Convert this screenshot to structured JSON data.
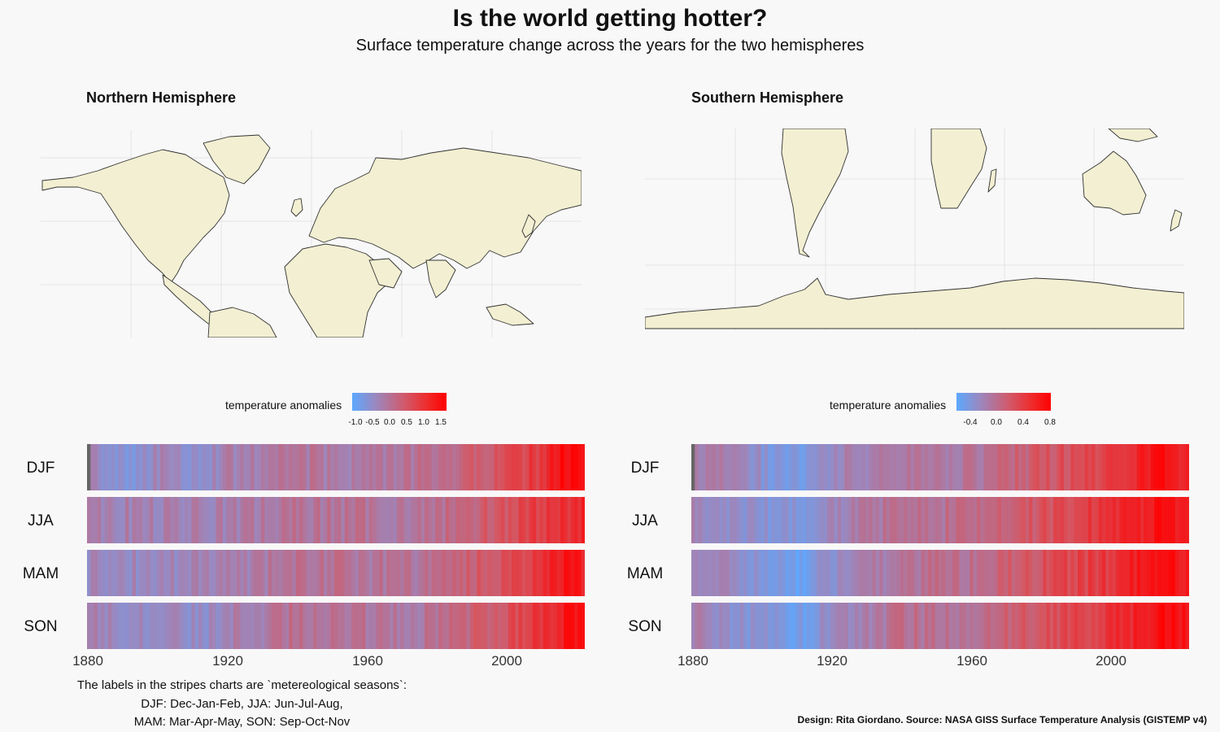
{
  "title": "Is the world getting hotter?",
  "subtitle": "Surface temperature change across the years for the two hemispheres",
  "panels": {
    "north": {
      "title": "Northern Hemisphere",
      "legend": {
        "label": "temperature anomalies",
        "ticks": [
          "-1.0",
          "-0.5",
          "0.0",
          "0.5",
          "1.0",
          "1.5"
        ]
      }
    },
    "south": {
      "title": "Southern Hemisphere",
      "legend": {
        "label": "temperature anomalies",
        "ticks": [
          "-0.4",
          "0.0",
          "0.4",
          "0.8"
        ]
      }
    }
  },
  "note": {
    "line1": "The labels in the stripes charts are `metereological seasons`:",
    "line2": "DJF: Dec-Jan-Feb, JJA: Jun-Jul-Aug,",
    "line3": "MAM: Mar-Apr-May, SON: Sep-Oct-Nov"
  },
  "caption": "Design: Rita Giordano.  Source: NASA GISS Surface Temperature Analysis (GISTEMP v4)",
  "colors": {
    "cold": "#5ca8ff",
    "mid": "#9b88bf",
    "warm": "#ff0000",
    "missing": "#666666",
    "land": "#f2efd2"
  },
  "chart_data": [
    {
      "type": "heatmap",
      "title": "Northern Hemisphere",
      "rows": [
        "DJF",
        "JJA",
        "MAM",
        "SON"
      ],
      "x_range": [
        1880,
        2022
      ],
      "x_ticks": [
        1880,
        1920,
        1960,
        2000
      ],
      "color_range": [
        -1.1,
        1.6
      ],
      "missing": {
        "DJF": [
          1880
        ]
      },
      "anchors": {
        "DJF": [
          [
            1880,
            -0.35
          ],
          [
            1893,
            -0.6
          ],
          [
            1900,
            -0.3
          ],
          [
            1910,
            -0.45
          ],
          [
            1920,
            -0.2
          ],
          [
            1940,
            0.0
          ],
          [
            1950,
            -0.15
          ],
          [
            1970,
            -0.05
          ],
          [
            1985,
            0.2
          ],
          [
            2000,
            0.6
          ],
          [
            2010,
            0.9
          ],
          [
            2016,
            1.45
          ],
          [
            2022,
            1.3
          ]
        ],
        "JJA": [
          [
            1880,
            -0.15
          ],
          [
            1900,
            -0.25
          ],
          [
            1920,
            -0.2
          ],
          [
            1940,
            0.0
          ],
          [
            1960,
            0.0
          ],
          [
            1975,
            -0.05
          ],
          [
            1990,
            0.3
          ],
          [
            2000,
            0.55
          ],
          [
            2010,
            0.85
          ],
          [
            2022,
            1.1
          ]
        ],
        "MAM": [
          [
            1880,
            -0.3
          ],
          [
            1900,
            -0.35
          ],
          [
            1920,
            -0.2
          ],
          [
            1940,
            0.05
          ],
          [
            1960,
            0.0
          ],
          [
            1975,
            0.0
          ],
          [
            1990,
            0.35
          ],
          [
            2000,
            0.6
          ],
          [
            2010,
            0.95
          ],
          [
            2016,
            1.3
          ],
          [
            2022,
            1.2
          ]
        ],
        "SON": [
          [
            1880,
            -0.25
          ],
          [
            1912,
            -0.45
          ],
          [
            1920,
            -0.25
          ],
          [
            1940,
            0.1
          ],
          [
            1960,
            0.0
          ],
          [
            1975,
            -0.05
          ],
          [
            1990,
            0.3
          ],
          [
            2000,
            0.6
          ],
          [
            2010,
            0.9
          ],
          [
            2017,
            1.35
          ],
          [
            2022,
            1.25
          ]
        ]
      }
    },
    {
      "type": "heatmap",
      "title": "Southern Hemisphere",
      "rows": [
        "DJF",
        "JJA",
        "MAM",
        "SON"
      ],
      "x_range": [
        1880,
        2022
      ],
      "x_ticks": [
        1880,
        1920,
        1960,
        2000
      ],
      "color_range": [
        -0.55,
        0.85
      ],
      "missing": {
        "DJF": [
          1880
        ]
      },
      "anchors": {
        "DJF": [
          [
            1880,
            0.0
          ],
          [
            1895,
            -0.15
          ],
          [
            1905,
            -0.35
          ],
          [
            1912,
            -0.4
          ],
          [
            1920,
            -0.15
          ],
          [
            1940,
            0.0
          ],
          [
            1960,
            0.0
          ],
          [
            1980,
            0.25
          ],
          [
            2000,
            0.45
          ],
          [
            2016,
            0.75
          ],
          [
            2022,
            0.65
          ]
        ],
        "JJA": [
          [
            1880,
            -0.1
          ],
          [
            1905,
            -0.3
          ],
          [
            1912,
            -0.35
          ],
          [
            1920,
            -0.15
          ],
          [
            1940,
            0.05
          ],
          [
            1960,
            0.05
          ],
          [
            1980,
            0.3
          ],
          [
            2000,
            0.5
          ],
          [
            2016,
            0.75
          ],
          [
            2022,
            0.7
          ]
        ],
        "MAM": [
          [
            1880,
            -0.05
          ],
          [
            1905,
            -0.4
          ],
          [
            1910,
            -0.5
          ],
          [
            1918,
            -0.25
          ],
          [
            1940,
            0.05
          ],
          [
            1960,
            0.05
          ],
          [
            1980,
            0.3
          ],
          [
            2000,
            0.5
          ],
          [
            2016,
            0.8
          ],
          [
            2022,
            0.7
          ]
        ],
        "SON": [
          [
            1880,
            -0.1
          ],
          [
            1905,
            -0.35
          ],
          [
            1912,
            -0.4
          ],
          [
            1920,
            -0.15
          ],
          [
            1940,
            0.05
          ],
          [
            1960,
            0.05
          ],
          [
            1980,
            0.3
          ],
          [
            2000,
            0.5
          ],
          [
            2016,
            0.75
          ],
          [
            2022,
            0.7
          ]
        ]
      }
    }
  ]
}
